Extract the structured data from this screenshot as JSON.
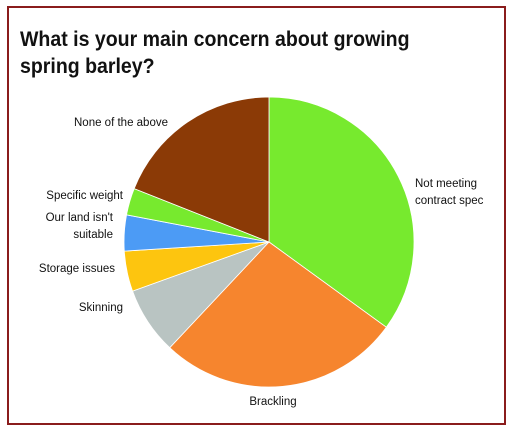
{
  "chart_data": {
    "type": "pie",
    "title": "What is your main concern about growing spring barley?",
    "slices": [
      {
        "label": "Not meeting contract spec",
        "value": 35,
        "color": "#77ea2e"
      },
      {
        "label": "Brackling",
        "value": 27,
        "color": "#f6852e"
      },
      {
        "label": "Skinning",
        "value": 7.5,
        "color": "#b9c4c2"
      },
      {
        "label": "Storage issues",
        "value": 4.5,
        "color": "#fdc50f"
      },
      {
        "label": "Our land isn't suitable",
        "value": 4,
        "color": "#4c9bf5"
      },
      {
        "label": "Specific weight",
        "value": 3,
        "color": "#77ea2e"
      },
      {
        "label": "None of the above",
        "value": 19,
        "color": "#8b3a06"
      }
    ],
    "start_angle_deg": 0,
    "direction": "clockwise",
    "label_placement": "outside"
  }
}
